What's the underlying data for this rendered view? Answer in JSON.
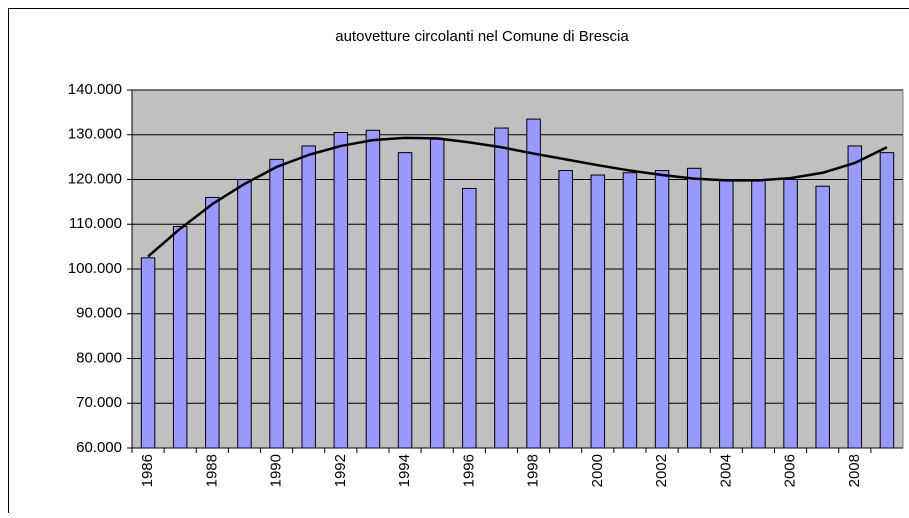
{
  "chart_data": {
    "type": "bar",
    "title": "autovetture circolanti nel Comune di Brescia",
    "categories": [
      "1986",
      null,
      "1988",
      null,
      "1990",
      null,
      "1992",
      null,
      "1994",
      null,
      "1996",
      null,
      "1998",
      null,
      "2000",
      null,
      "2002",
      null,
      "2004",
      null,
      "2006",
      null,
      "2008",
      null
    ],
    "series": [
      {
        "type": "bar",
        "color": "#9999ff",
        "values": [
          102500,
          109500,
          116000,
          120000,
          124500,
          127500,
          130500,
          131000,
          126000,
          129000,
          118000,
          131500,
          133500,
          122000,
          121000,
          121500,
          122000,
          122500,
          120000,
          120000,
          120000,
          118500,
          127500,
          126000
        ]
      },
      {
        "type": "line",
        "color": "#000000",
        "values": [
          102800,
          109000,
          114500,
          119000,
          122800,
          125500,
          127500,
          128800,
          129300,
          129200,
          128300,
          127200,
          125800,
          124500,
          123200,
          122000,
          121000,
          120200,
          119800,
          119800,
          120300,
          121500,
          123700,
          127200
        ]
      }
    ],
    "ylim": [
      60000,
      140000
    ],
    "yticks": [
      {
        "value": 60000,
        "label": "60.000"
      },
      {
        "value": 70000,
        "label": "70.000"
      },
      {
        "value": 80000,
        "label": "80.000"
      },
      {
        "value": 90000,
        "label": "90.000"
      },
      {
        "value": 100000,
        "label": "100.000"
      },
      {
        "value": 110000,
        "label": "110.000"
      },
      {
        "value": 120000,
        "label": "120.000"
      },
      {
        "value": 130000,
        "label": "130.000"
      },
      {
        "value": 140000,
        "label": "140.000"
      }
    ],
    "grid": true,
    "plot_background": "#c0c0c0"
  }
}
